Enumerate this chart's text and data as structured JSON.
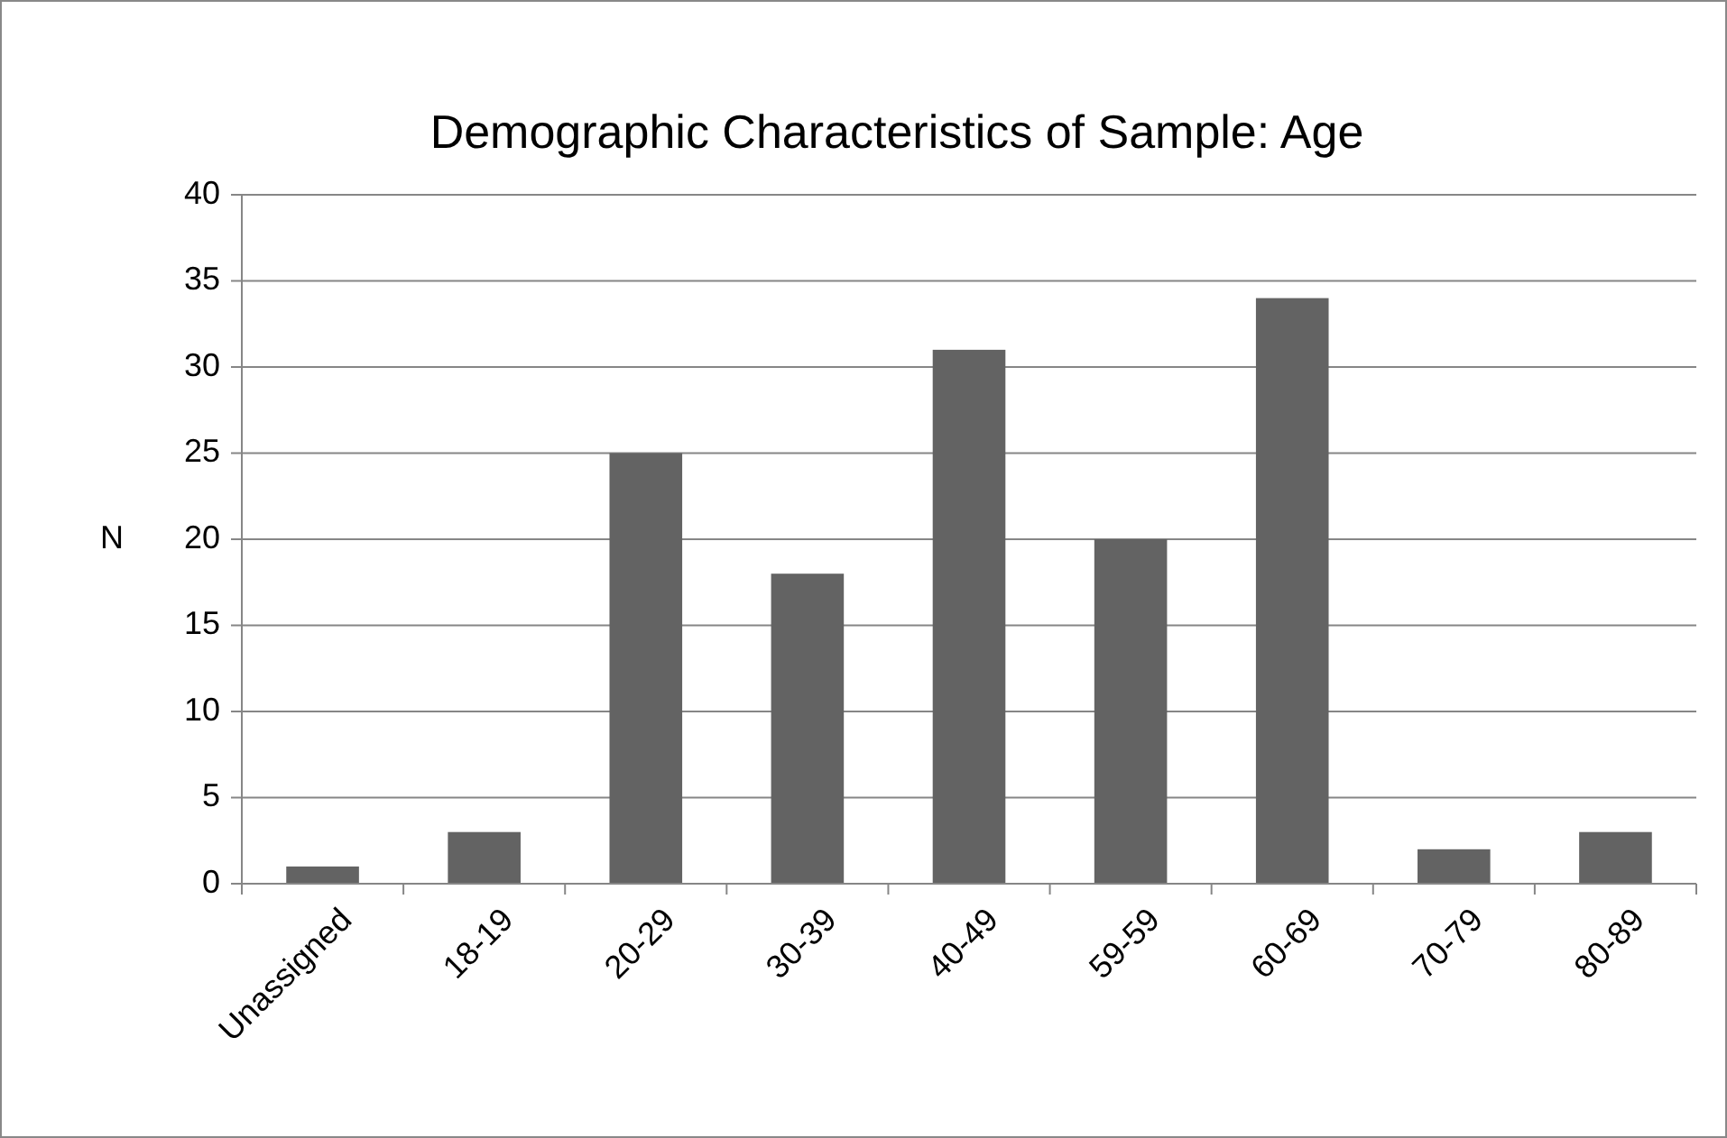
{
  "chart_data": {
    "type": "bar",
    "title": "Demographic Characteristics of Sample: Age",
    "ylabel": "N",
    "categories": [
      "Unassigned",
      "18-19",
      "20-29",
      "30-39",
      "40-49",
      "59-59",
      "60-69",
      "70-79",
      "80-89"
    ],
    "values": [
      1,
      3,
      25,
      18,
      31,
      20,
      34,
      2,
      3
    ],
    "color": "#636363",
    "ylim": [
      0,
      40
    ],
    "yticks": [
      0,
      5,
      10,
      15,
      20,
      25,
      30,
      35,
      40
    ],
    "grid": "y"
  }
}
